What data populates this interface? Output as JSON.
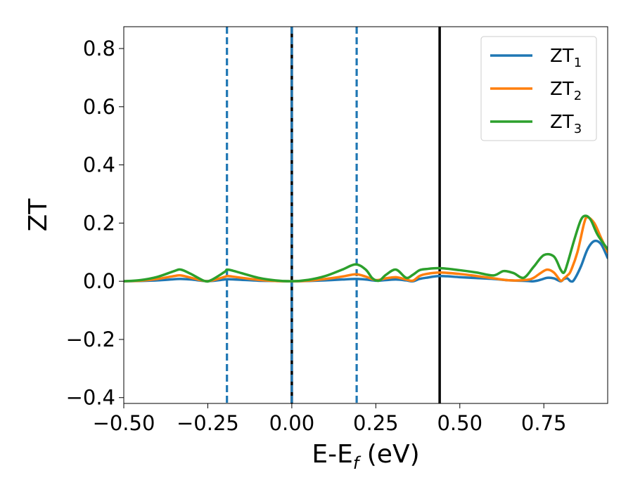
{
  "chart_data": {
    "type": "line",
    "title": "",
    "xlabel": {
      "main": "E-E",
      "sub": "f",
      "unit": " (eV)"
    },
    "ylabel": "ZT",
    "xlim": [
      -0.5,
      0.94
    ],
    "ylim": [
      -0.42,
      0.875
    ],
    "xticks": [
      -0.5,
      -0.25,
      0.0,
      0.25,
      0.5,
      0.75
    ],
    "xtick_labels": [
      "−0.50",
      "−0.25",
      "0.00",
      "0.25",
      "0.50",
      "0.75"
    ],
    "yticks": [
      -0.4,
      -0.2,
      0.0,
      0.2,
      0.4,
      0.6,
      0.8
    ],
    "ytick_labels": [
      "−0.4",
      "−0.2",
      "0.0",
      "0.2",
      "0.4",
      "0.6",
      "0.8"
    ],
    "grid": false,
    "legend_position": "top-right",
    "vertical_lines": [
      {
        "x": -0.193,
        "style": "dashed",
        "color": "#1f77b4"
      },
      {
        "x": 0.0,
        "style": "solid",
        "color": "#000000"
      },
      {
        "x": 0.0,
        "style": "dashed",
        "color": "#1f77b4"
      },
      {
        "x": 0.193,
        "style": "dashed",
        "color": "#1f77b4"
      },
      {
        "x": 0.44,
        "style": "solid",
        "color": "#000000"
      }
    ],
    "series": [
      {
        "name": "ZT",
        "sub": "1",
        "color": "#1f77b4",
        "points": [
          [
            -0.5,
            0.0
          ],
          [
            -0.45,
            0.001
          ],
          [
            -0.4,
            0.003
          ],
          [
            -0.35,
            0.007
          ],
          [
            -0.33,
            0.008
          ],
          [
            -0.3,
            0.006
          ],
          [
            -0.26,
            0.001
          ],
          [
            -0.24,
            0.001
          ],
          [
            -0.2,
            0.006
          ],
          [
            -0.19,
            0.007
          ],
          [
            -0.15,
            0.005
          ],
          [
            -0.1,
            0.002
          ],
          [
            -0.05,
            0.001
          ],
          [
            0.0,
            0.0
          ],
          [
            0.05,
            0.001
          ],
          [
            0.1,
            0.003
          ],
          [
            0.15,
            0.006
          ],
          [
            0.19,
            0.008
          ],
          [
            0.22,
            0.006
          ],
          [
            0.25,
            0.002
          ],
          [
            0.28,
            0.004
          ],
          [
            0.31,
            0.006
          ],
          [
            0.34,
            0.003
          ],
          [
            0.36,
            0.0
          ],
          [
            0.38,
            0.008
          ],
          [
            0.4,
            0.012
          ],
          [
            0.44,
            0.018
          ],
          [
            0.5,
            0.014
          ],
          [
            0.55,
            0.011
          ],
          [
            0.6,
            0.008
          ],
          [
            0.65,
            0.003
          ],
          [
            0.7,
            0.001
          ],
          [
            0.72,
            0.0
          ],
          [
            0.74,
            0.005
          ],
          [
            0.76,
            0.012
          ],
          [
            0.78,
            0.01
          ],
          [
            0.8,
            0.0
          ],
          [
            0.81,
            0.008
          ],
          [
            0.82,
            0.01
          ],
          [
            0.83,
            0.0
          ],
          [
            0.84,
            0.005
          ],
          [
            0.86,
            0.05
          ],
          [
            0.88,
            0.11
          ],
          [
            0.9,
            0.138
          ],
          [
            0.92,
            0.128
          ],
          [
            0.94,
            0.08
          ]
        ]
      },
      {
        "name": "ZT",
        "sub": "2",
        "color": "#ff7f0e",
        "points": [
          [
            -0.5,
            0.0
          ],
          [
            -0.45,
            0.002
          ],
          [
            -0.4,
            0.008
          ],
          [
            -0.35,
            0.018
          ],
          [
            -0.33,
            0.02
          ],
          [
            -0.3,
            0.012
          ],
          [
            -0.26,
            0.001
          ],
          [
            -0.24,
            0.002
          ],
          [
            -0.2,
            0.015
          ],
          [
            -0.19,
            0.018
          ],
          [
            -0.15,
            0.012
          ],
          [
            -0.1,
            0.005
          ],
          [
            -0.05,
            0.001
          ],
          [
            0.0,
            0.0
          ],
          [
            0.05,
            0.002
          ],
          [
            0.1,
            0.008
          ],
          [
            0.15,
            0.016
          ],
          [
            0.19,
            0.024
          ],
          [
            0.22,
            0.016
          ],
          [
            0.25,
            0.004
          ],
          [
            0.28,
            0.01
          ],
          [
            0.31,
            0.014
          ],
          [
            0.34,
            0.006
          ],
          [
            0.36,
            0.002
          ],
          [
            0.38,
            0.018
          ],
          [
            0.4,
            0.025
          ],
          [
            0.44,
            0.03
          ],
          [
            0.5,
            0.025
          ],
          [
            0.55,
            0.018
          ],
          [
            0.6,
            0.01
          ],
          [
            0.65,
            0.003
          ],
          [
            0.7,
            0.005
          ],
          [
            0.72,
            0.012
          ],
          [
            0.74,
            0.028
          ],
          [
            0.76,
            0.04
          ],
          [
            0.78,
            0.03
          ],
          [
            0.8,
            0.002
          ],
          [
            0.81,
            0.01
          ],
          [
            0.82,
            0.02
          ],
          [
            0.83,
            0.035
          ],
          [
            0.85,
            0.1
          ],
          [
            0.87,
            0.2
          ],
          [
            0.88,
            0.22
          ],
          [
            0.9,
            0.2
          ],
          [
            0.92,
            0.15
          ],
          [
            0.94,
            0.1
          ]
        ]
      },
      {
        "name": "ZT",
        "sub": "3",
        "color": "#2ca02c",
        "points": [
          [
            -0.5,
            0.0
          ],
          [
            -0.45,
            0.004
          ],
          [
            -0.4,
            0.015
          ],
          [
            -0.35,
            0.035
          ],
          [
            -0.33,
            0.04
          ],
          [
            -0.3,
            0.025
          ],
          [
            -0.26,
            0.001
          ],
          [
            -0.24,
            0.004
          ],
          [
            -0.2,
            0.032
          ],
          [
            -0.19,
            0.04
          ],
          [
            -0.15,
            0.028
          ],
          [
            -0.1,
            0.012
          ],
          [
            -0.05,
            0.003
          ],
          [
            0.0,
            0.0
          ],
          [
            0.05,
            0.005
          ],
          [
            0.1,
            0.018
          ],
          [
            0.15,
            0.04
          ],
          [
            0.19,
            0.058
          ],
          [
            0.22,
            0.04
          ],
          [
            0.24,
            0.01
          ],
          [
            0.26,
            0.002
          ],
          [
            0.28,
            0.022
          ],
          [
            0.31,
            0.04
          ],
          [
            0.34,
            0.012
          ],
          [
            0.36,
            0.022
          ],
          [
            0.38,
            0.038
          ],
          [
            0.4,
            0.042
          ],
          [
            0.44,
            0.045
          ],
          [
            0.5,
            0.038
          ],
          [
            0.55,
            0.03
          ],
          [
            0.6,
            0.02
          ],
          [
            0.63,
            0.035
          ],
          [
            0.66,
            0.028
          ],
          [
            0.69,
            0.012
          ],
          [
            0.72,
            0.05
          ],
          [
            0.75,
            0.09
          ],
          [
            0.78,
            0.085
          ],
          [
            0.8,
            0.04
          ],
          [
            0.81,
            0.03
          ],
          [
            0.82,
            0.06
          ],
          [
            0.84,
            0.14
          ],
          [
            0.86,
            0.21
          ],
          [
            0.875,
            0.225
          ],
          [
            0.89,
            0.21
          ],
          [
            0.91,
            0.16
          ],
          [
            0.94,
            0.11
          ]
        ]
      }
    ]
  }
}
